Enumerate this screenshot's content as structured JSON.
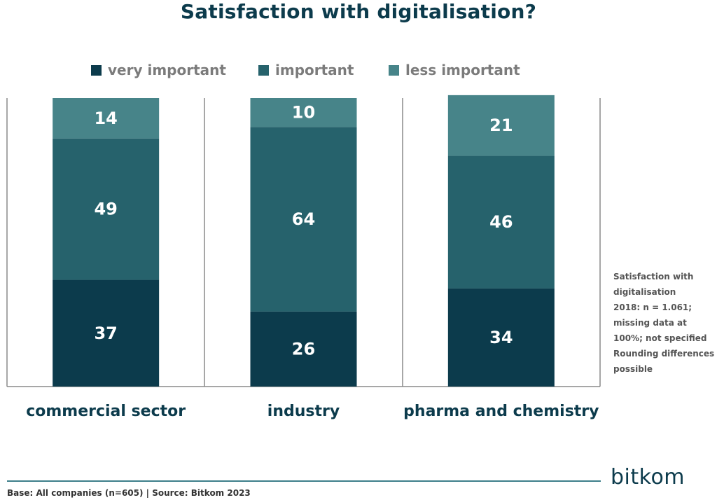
{
  "page": {
    "note_lines": [
      "Satisfaction with",
      "digitalisation",
      "2018: n = 1.061;",
      "missing data at",
      "100%; not specified",
      "Rounding differences",
      "possible"
    ],
    "source": "Base: All companies (n=605) | Source: Bitkom 2023",
    "logo": "bitkom"
  },
  "chart_data": {
    "type": "bar",
    "stacked": true,
    "title": "Satisfaction with digitalisation?",
    "categories": [
      "commercial sector",
      "industry",
      "pharma and chemistry"
    ],
    "series": [
      {
        "name": "very important",
        "values": [
          37,
          26,
          34
        ],
        "color": "#0c3b4c"
      },
      {
        "name": "important",
        "values": [
          49,
          64,
          46
        ],
        "color": "#26626c"
      },
      {
        "name": "less important",
        "values": [
          14,
          10,
          21
        ],
        "color": "#478489"
      }
    ],
    "ylim": [
      0,
      100
    ],
    "legend_position": "top",
    "grid": false
  }
}
